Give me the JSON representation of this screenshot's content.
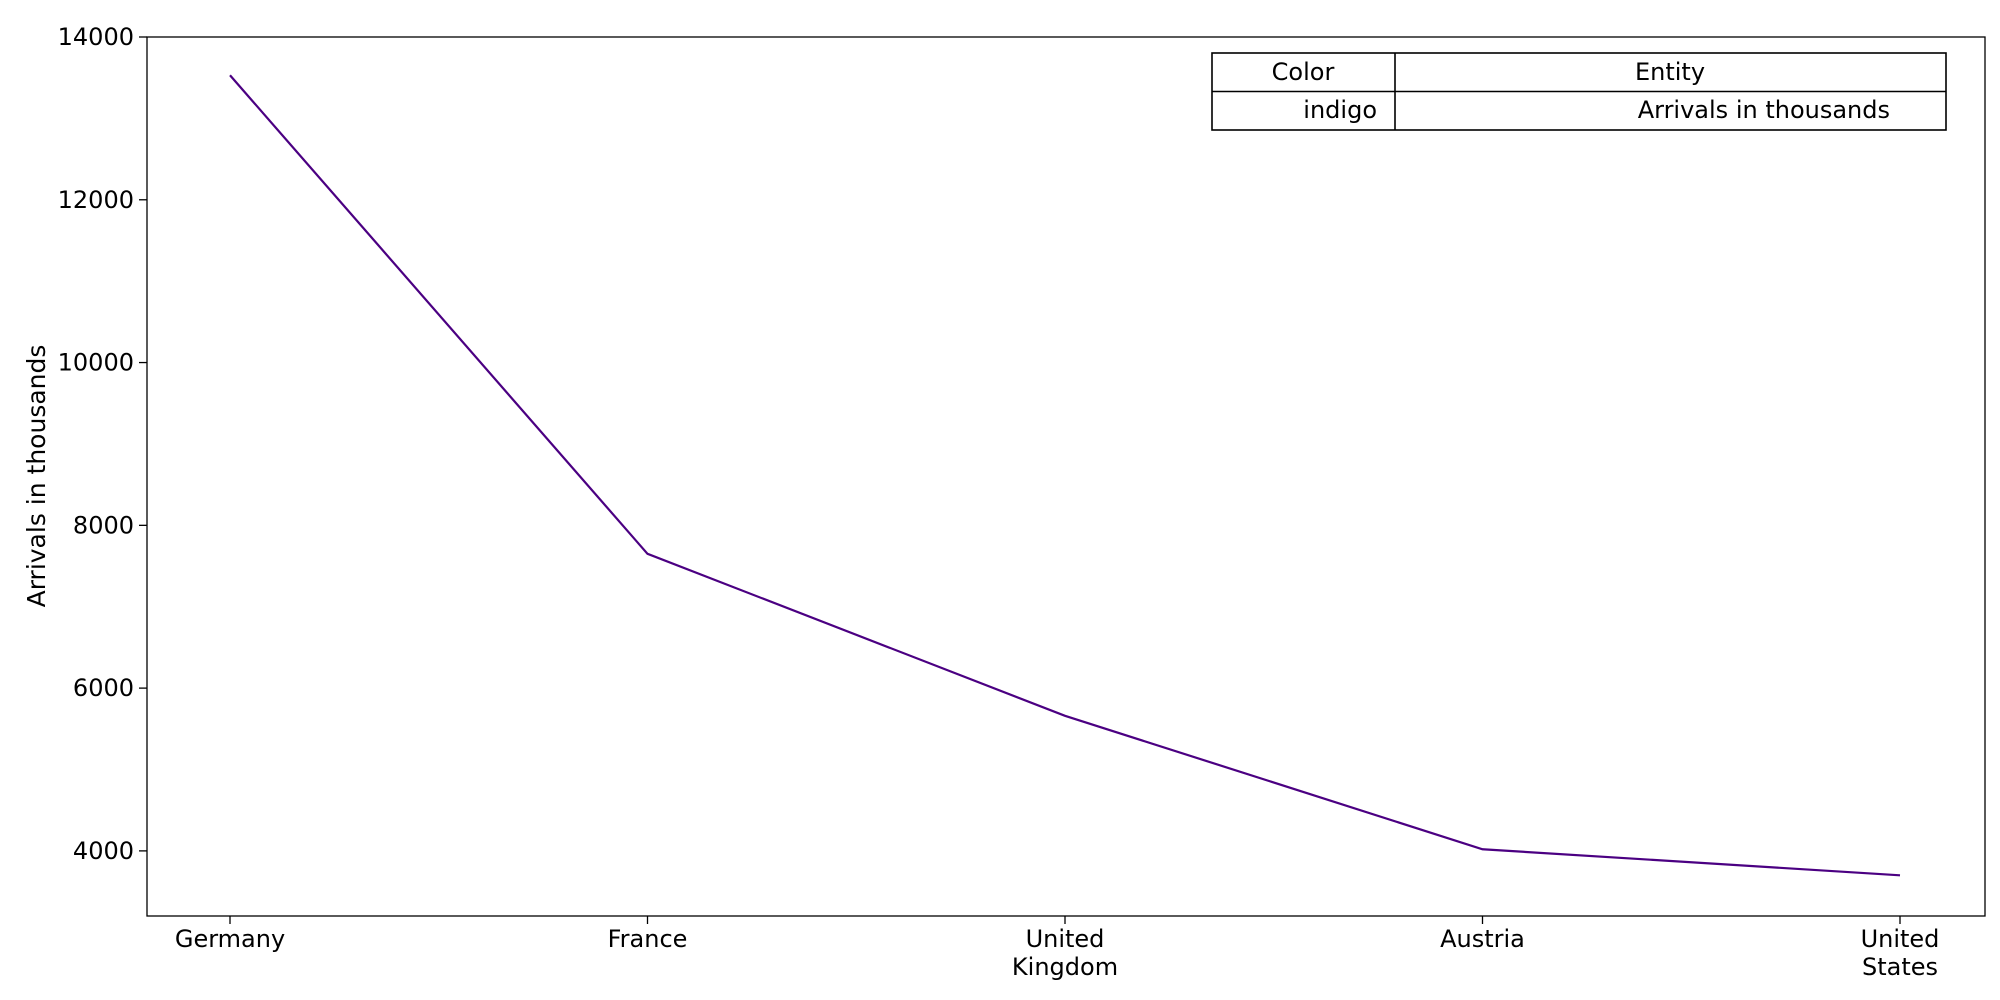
{
  "chart_data": {
    "type": "line",
    "categories": [
      "Germany",
      "France",
      "United Kingdom",
      "Austria",
      "United States"
    ],
    "series": [
      {
        "values": [
          13530,
          7650,
          5660,
          4020,
          3700
        ],
        "color": "#4b0082"
      }
    ],
    "xlabel": "",
    "ylabel": "Arrivals in thousands",
    "ylim": [
      3200,
      14000
    ],
    "yticks": [
      4000,
      6000,
      8000,
      10000,
      12000,
      14000
    ],
    "grid": false,
    "legend": {
      "placement": "top-right",
      "header_color": "Color",
      "header_entity": "Entity",
      "rows": [
        {
          "color_name": "indigo",
          "entity": "Arrivals in thousands"
        }
      ]
    }
  }
}
